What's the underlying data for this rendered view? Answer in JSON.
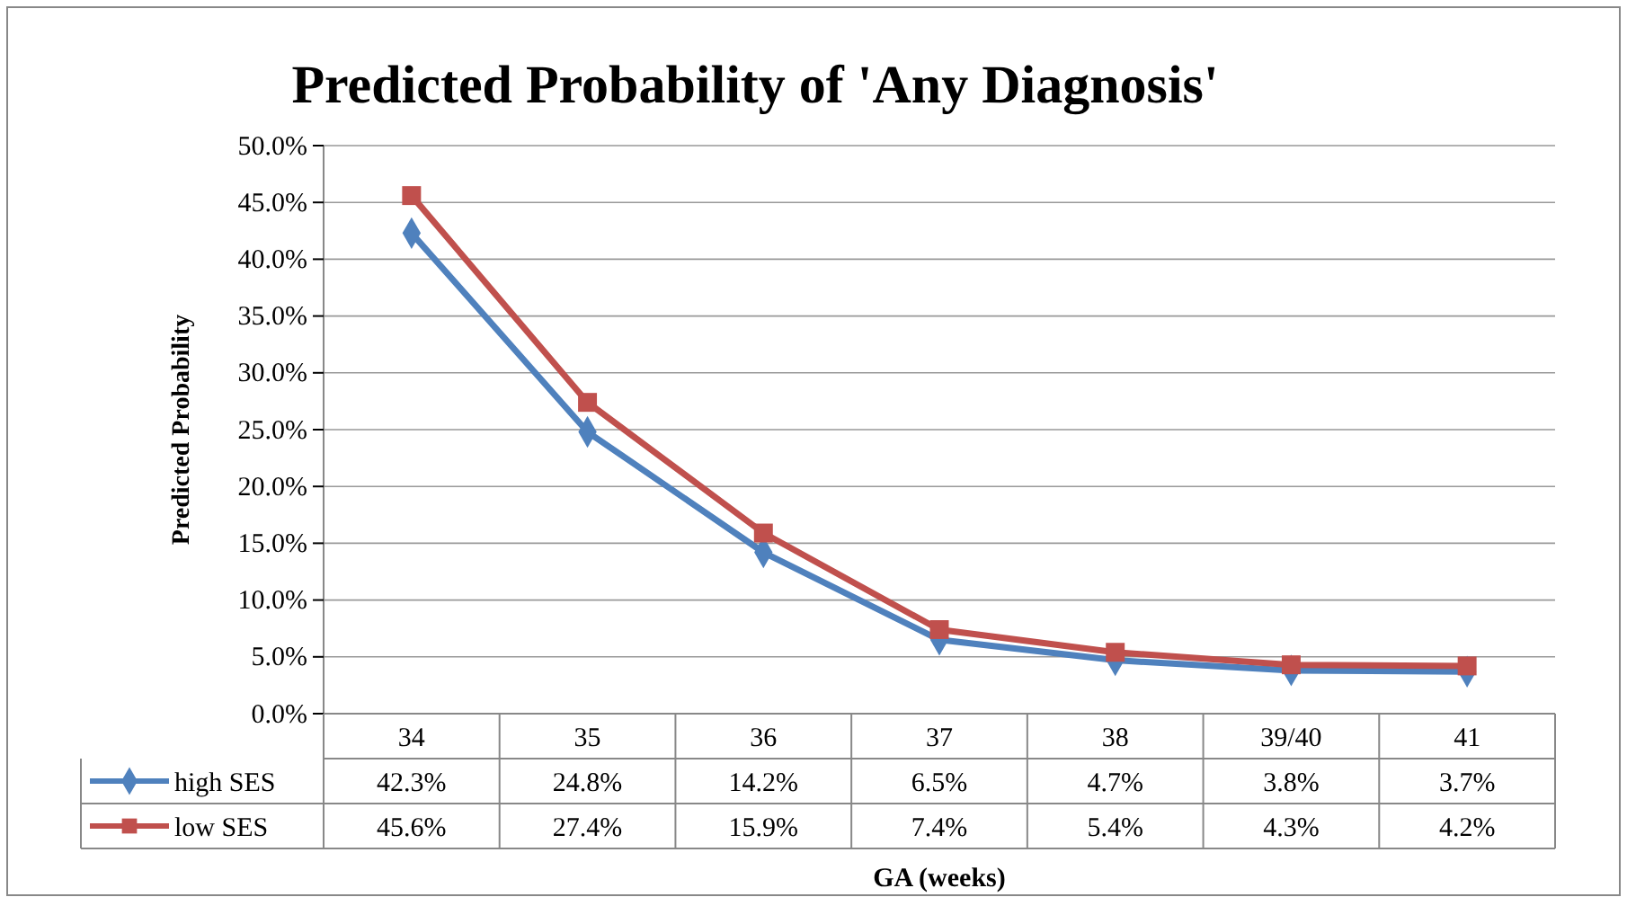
{
  "chart_data": {
    "type": "line",
    "title": "Predicted Probability of 'Any Diagnosis'",
    "xlabel": "GA (weeks)",
    "ylabel": "Predicted Probability",
    "categories": [
      "34",
      "35",
      "36",
      "37",
      "38",
      "39/40",
      "41"
    ],
    "series": [
      {
        "name": "high SES",
        "color": "#4f81bd",
        "marker": "diamond",
        "values": [
          42.3,
          24.8,
          14.2,
          6.5,
          4.7,
          3.8,
          3.7
        ],
        "value_labels": [
          "42.3%",
          "24.8%",
          "14.2%",
          "6.5%",
          "4.7%",
          "3.8%",
          "3.7%"
        ]
      },
      {
        "name": "low SES",
        "color": "#c0504d",
        "marker": "square",
        "values": [
          45.6,
          27.4,
          15.9,
          7.4,
          5.4,
          4.3,
          4.2
        ],
        "value_labels": [
          "45.6%",
          "27.4%",
          "15.9%",
          "7.4%",
          "5.4%",
          "4.3%",
          "4.2%"
        ]
      }
    ],
    "ylim": [
      0,
      50
    ],
    "yticks": [
      {
        "value": 0,
        "label": "0.0%"
      },
      {
        "value": 5,
        "label": "5.0%"
      },
      {
        "value": 10,
        "label": "10.0%"
      },
      {
        "value": 15,
        "label": "15.0%"
      },
      {
        "value": 20,
        "label": "20.0%"
      },
      {
        "value": 25,
        "label": "25.0%"
      },
      {
        "value": 30,
        "label": "30.0%"
      },
      {
        "value": 35,
        "label": "35.0%"
      },
      {
        "value": 40,
        "label": "40.0%"
      },
      {
        "value": 45,
        "label": "45.0%"
      },
      {
        "value": 50,
        "label": "50.0%"
      }
    ],
    "grid": "y",
    "legend": "bottom",
    "line_style": "solid"
  }
}
